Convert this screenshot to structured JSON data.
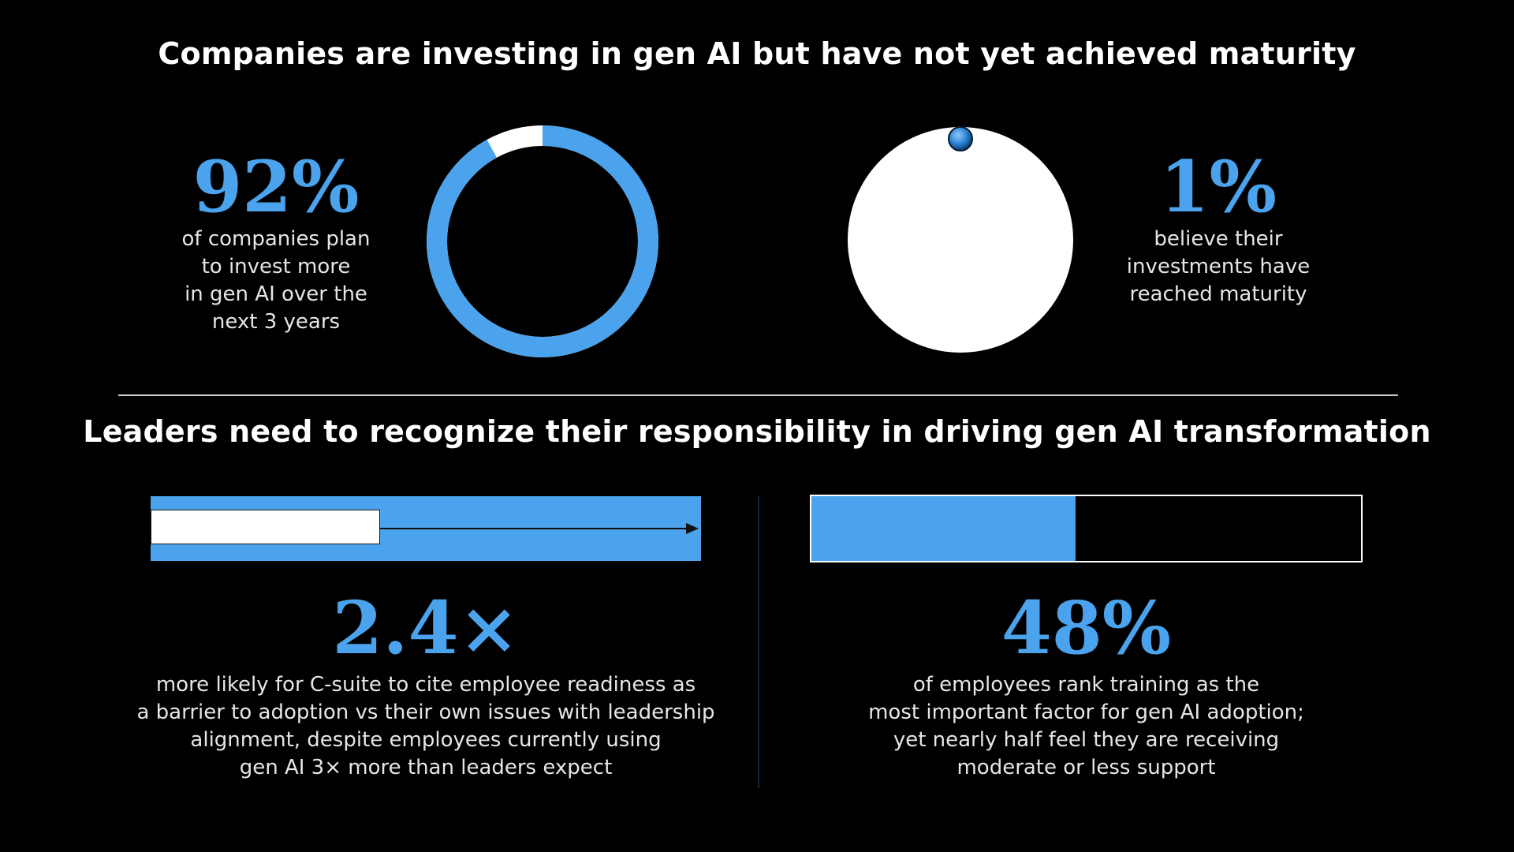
{
  "section_one": {
    "title": "Companies are investing in gen AI but have not yet achieved maturity",
    "invest": {
      "stat": "92%",
      "description": "of companies plan\nto invest more\nin gen AI over the\nnext 3 years",
      "ring_fill_fraction": 0.92
    },
    "maturity": {
      "stat": "1%",
      "description": "believe their\ninvestments have\nreached maturity",
      "dot_fraction": 0.01
    }
  },
  "section_two": {
    "title": "Leaders need to recognize their responsibility in driving gen AI transformation",
    "readiness": {
      "stat": "2.4×",
      "description": "more likely for C-suite to cite employee readiness as\na barrier to adoption vs their own issues with leadership\nalignment, despite employees currently using\ngen AI 3× more than leaders expect",
      "ratio": 2.4
    },
    "training": {
      "stat": "48%",
      "description": "of employees rank training as the\nmost important factor for gen AI adoption;\nyet nearly half feel they are receiving\nmoderate or less support",
      "bar_fill_fraction": 0.48
    }
  },
  "colors": {
    "background": "#000000",
    "accent": "#4aa3ec",
    "text": "#ffffff",
    "divider": "#cccccc",
    "vertical_divider": "#12243a"
  }
}
